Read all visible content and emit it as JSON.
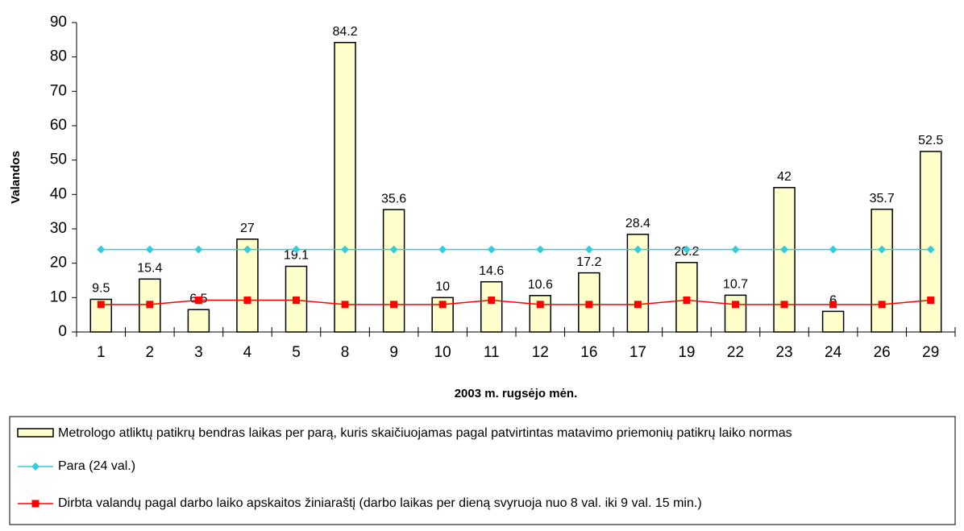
{
  "chart_data": {
    "type": "bar",
    "x_label": "2003 m. rugsėjo mėn.",
    "y_label": "Valandos",
    "categories": [
      "1",
      "2",
      "3",
      "4",
      "5",
      "8",
      "9",
      "10",
      "11",
      "12",
      "16",
      "17",
      "19",
      "22",
      "23",
      "24",
      "26",
      "29"
    ],
    "series": [
      {
        "name": "Metrologo atliktų patikrų bendras laikas per parą, kuris skaičiuojamas pagal patvirtintas matavimo priemonių patikrų laiko normas",
        "type": "bar",
        "color": "#ffffcc",
        "values": [
          9.5,
          15.4,
          6.5,
          27,
          19.1,
          84.2,
          35.6,
          10,
          14.6,
          10.6,
          17.2,
          28.4,
          20.2,
          10.7,
          42,
          6,
          35.7,
          52.5
        ]
      },
      {
        "name": "Para (24 val.)",
        "type": "line",
        "marker": "diamond",
        "color": "#33ccdd",
        "values": [
          24,
          24,
          24,
          24,
          24,
          24,
          24,
          24,
          24,
          24,
          24,
          24,
          24,
          24,
          24,
          24,
          24,
          24
        ]
      },
      {
        "name": "Dirbta valandų pagal darbo laiko apskaitos žiniaraštį (darbo laikas per dieną svyruoja nuo 8 val. iki 9 val. 15 min.)",
        "type": "line",
        "marker": "square",
        "color": "#ff0000",
        "values": [
          8,
          8,
          9.25,
          9.25,
          9.25,
          8,
          8,
          8,
          9.25,
          8,
          8,
          8,
          9.25,
          8,
          8,
          8,
          8,
          9.25
        ]
      }
    ],
    "ylim": [
      0,
      90
    ],
    "yticks": [
      0,
      10,
      20,
      30,
      40,
      50,
      60,
      70,
      80,
      90
    ]
  }
}
